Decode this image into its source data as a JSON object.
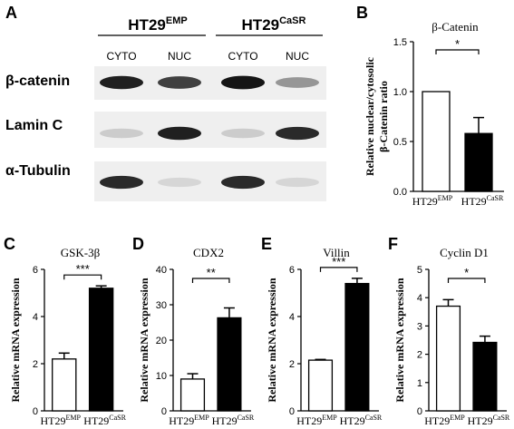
{
  "panel_letters": [
    "A",
    "B",
    "C",
    "D",
    "E",
    "F"
  ],
  "blot": {
    "groups": [
      {
        "base": "HT29",
        "sup": "EMP"
      },
      {
        "base": "HT29",
        "sup": "CaSR"
      }
    ],
    "lanes": [
      "CYTO",
      "NUC",
      "CYTO",
      "NUC"
    ],
    "rows": [
      "β-catenin",
      "Lamin C",
      "α-Tubulin"
    ],
    "band_intensity": [
      [
        0.9,
        0.75,
        0.95,
        0.35
      ],
      [
        0.1,
        0.9,
        0.1,
        0.85
      ],
      [
        0.85,
        0.05,
        0.85,
        0.05
      ]
    ]
  },
  "chart_data": [
    {
      "type": "bar",
      "panel": "B",
      "title": "β-Catenin",
      "ylabel_lines": [
        "Relative nuclear/cytosolic",
        "β-Catenin ratio"
      ],
      "categories": [
        {
          "base": "HT29",
          "sup": "EMP"
        },
        {
          "base": "HT29",
          "sup": "CaSR"
        }
      ],
      "values": [
        1.0,
        0.58
      ],
      "errors": [
        0,
        0.16
      ],
      "fills": [
        "#ffffff",
        "#000000"
      ],
      "ylim": [
        0,
        1.5
      ],
      "yticks": [
        "0.0",
        "0.5",
        "1.0",
        "1.5"
      ],
      "significance": "*"
    },
    {
      "type": "bar",
      "panel": "C",
      "title": "GSK-3β",
      "ylabel": "Relative mRNA expression",
      "categories": [
        {
          "base": "HT29",
          "sup": "EMP"
        },
        {
          "base": "HT29",
          "sup": "CaSR"
        }
      ],
      "values": [
        2.2,
        5.2
      ],
      "errors": [
        0.25,
        0.1
      ],
      "fills": [
        "#ffffff",
        "#000000"
      ],
      "ylim": [
        0,
        6
      ],
      "yticks": [
        "0",
        "2",
        "4",
        "6"
      ],
      "significance": "***"
    },
    {
      "type": "bar",
      "panel": "D",
      "title": "CDX2",
      "ylabel": "Relative mRNA expression",
      "categories": [
        {
          "base": "HT29",
          "sup": "EMP"
        },
        {
          "base": "HT29",
          "sup": "CaSR"
        }
      ],
      "values": [
        9,
        26.3
      ],
      "errors": [
        1.5,
        2.8
      ],
      "fills": [
        "#ffffff",
        "#000000"
      ],
      "ylim": [
        0,
        40
      ],
      "yticks": [
        "0",
        "10",
        "20",
        "30",
        "40"
      ],
      "significance": "**"
    },
    {
      "type": "bar",
      "panel": "E",
      "title": "Villin",
      "ylabel": "Relative mRNA expression",
      "categories": [
        {
          "base": "HT29",
          "sup": "EMP"
        },
        {
          "base": "HT29",
          "sup": "CaSR"
        }
      ],
      "values": [
        2.15,
        5.4
      ],
      "errors": [
        0.03,
        0.22
      ],
      "fills": [
        "#ffffff",
        "#000000"
      ],
      "ylim": [
        0,
        6
      ],
      "yticks": [
        "0",
        "2",
        "4",
        "6"
      ],
      "significance": "***"
    },
    {
      "type": "bar",
      "panel": "F",
      "title": "Cyclin  D1",
      "ylabel": "Relative mRNA expression",
      "categories": [
        {
          "base": "HT29",
          "sup": "EMP"
        },
        {
          "base": "HT29",
          "sup": "CaSR"
        }
      ],
      "values": [
        3.7,
        2.42
      ],
      "errors": [
        0.23,
        0.22
      ],
      "fills": [
        "#ffffff",
        "#000000"
      ],
      "ylim": [
        0,
        5
      ],
      "yticks": [
        "0",
        "1",
        "2",
        "3",
        "4",
        "5"
      ],
      "significance": "*"
    }
  ]
}
